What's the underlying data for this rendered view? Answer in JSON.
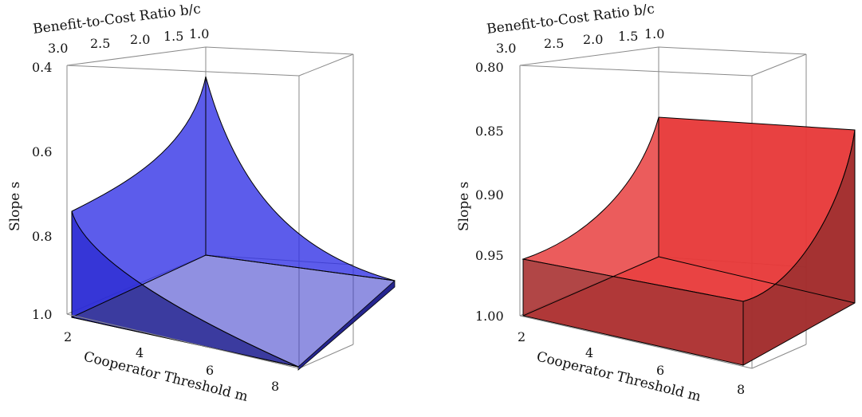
{
  "chart_data": [
    {
      "type": "surface3d",
      "panel": "left",
      "color": "#2b2bd9",
      "xlabel": "Cooperator Threshold m",
      "ylabel": "Benefit-to-Cost Ratio b/c",
      "zlabel": "Slope s",
      "x_ticks": [
        "2",
        "4",
        "6",
        "8"
      ],
      "y_ticks": [
        "3.0",
        "2.5",
        "2.0",
        "1.5",
        "1.0"
      ],
      "z_ticks": [
        "0.4",
        "0.6",
        "0.8",
        "1.0"
      ],
      "xlim": [
        2,
        8
      ],
      "ylim": [
        1.0,
        3.0
      ],
      "zlim": [
        1.0,
        0.4
      ],
      "surface_z": {
        "m": [
          2,
          8
        ],
        "bc": [
          1.0,
          3.0
        ],
        "values": [
          [
            0.43,
            1.0
          ],
          [
            0.75,
            1.0
          ]
        ]
      }
    },
    {
      "type": "surface3d",
      "panel": "right",
      "color": "#e83030",
      "xlabel": "Cooperator Threshold m",
      "ylabel": "Benefit-to-Cost Ratio b/c",
      "zlabel": "Slope s",
      "x_ticks": [
        "2",
        "4",
        "6",
        "8"
      ],
      "y_ticks": [
        "3.0",
        "2.5",
        "2.0",
        "1.5",
        "1.0"
      ],
      "z_ticks": [
        "0.80",
        "0.85",
        "0.90",
        "0.95",
        "1.00"
      ],
      "xlim": [
        2,
        8
      ],
      "ylim": [
        1.0,
        3.0
      ],
      "zlim": [
        1.0,
        0.8
      ],
      "surface_z": {
        "m": [
          2,
          8
        ],
        "bc": [
          1.0,
          3.0
        ],
        "values": [
          [
            0.84,
            0.85
          ],
          [
            0.95,
            0.95
          ]
        ]
      }
    }
  ]
}
